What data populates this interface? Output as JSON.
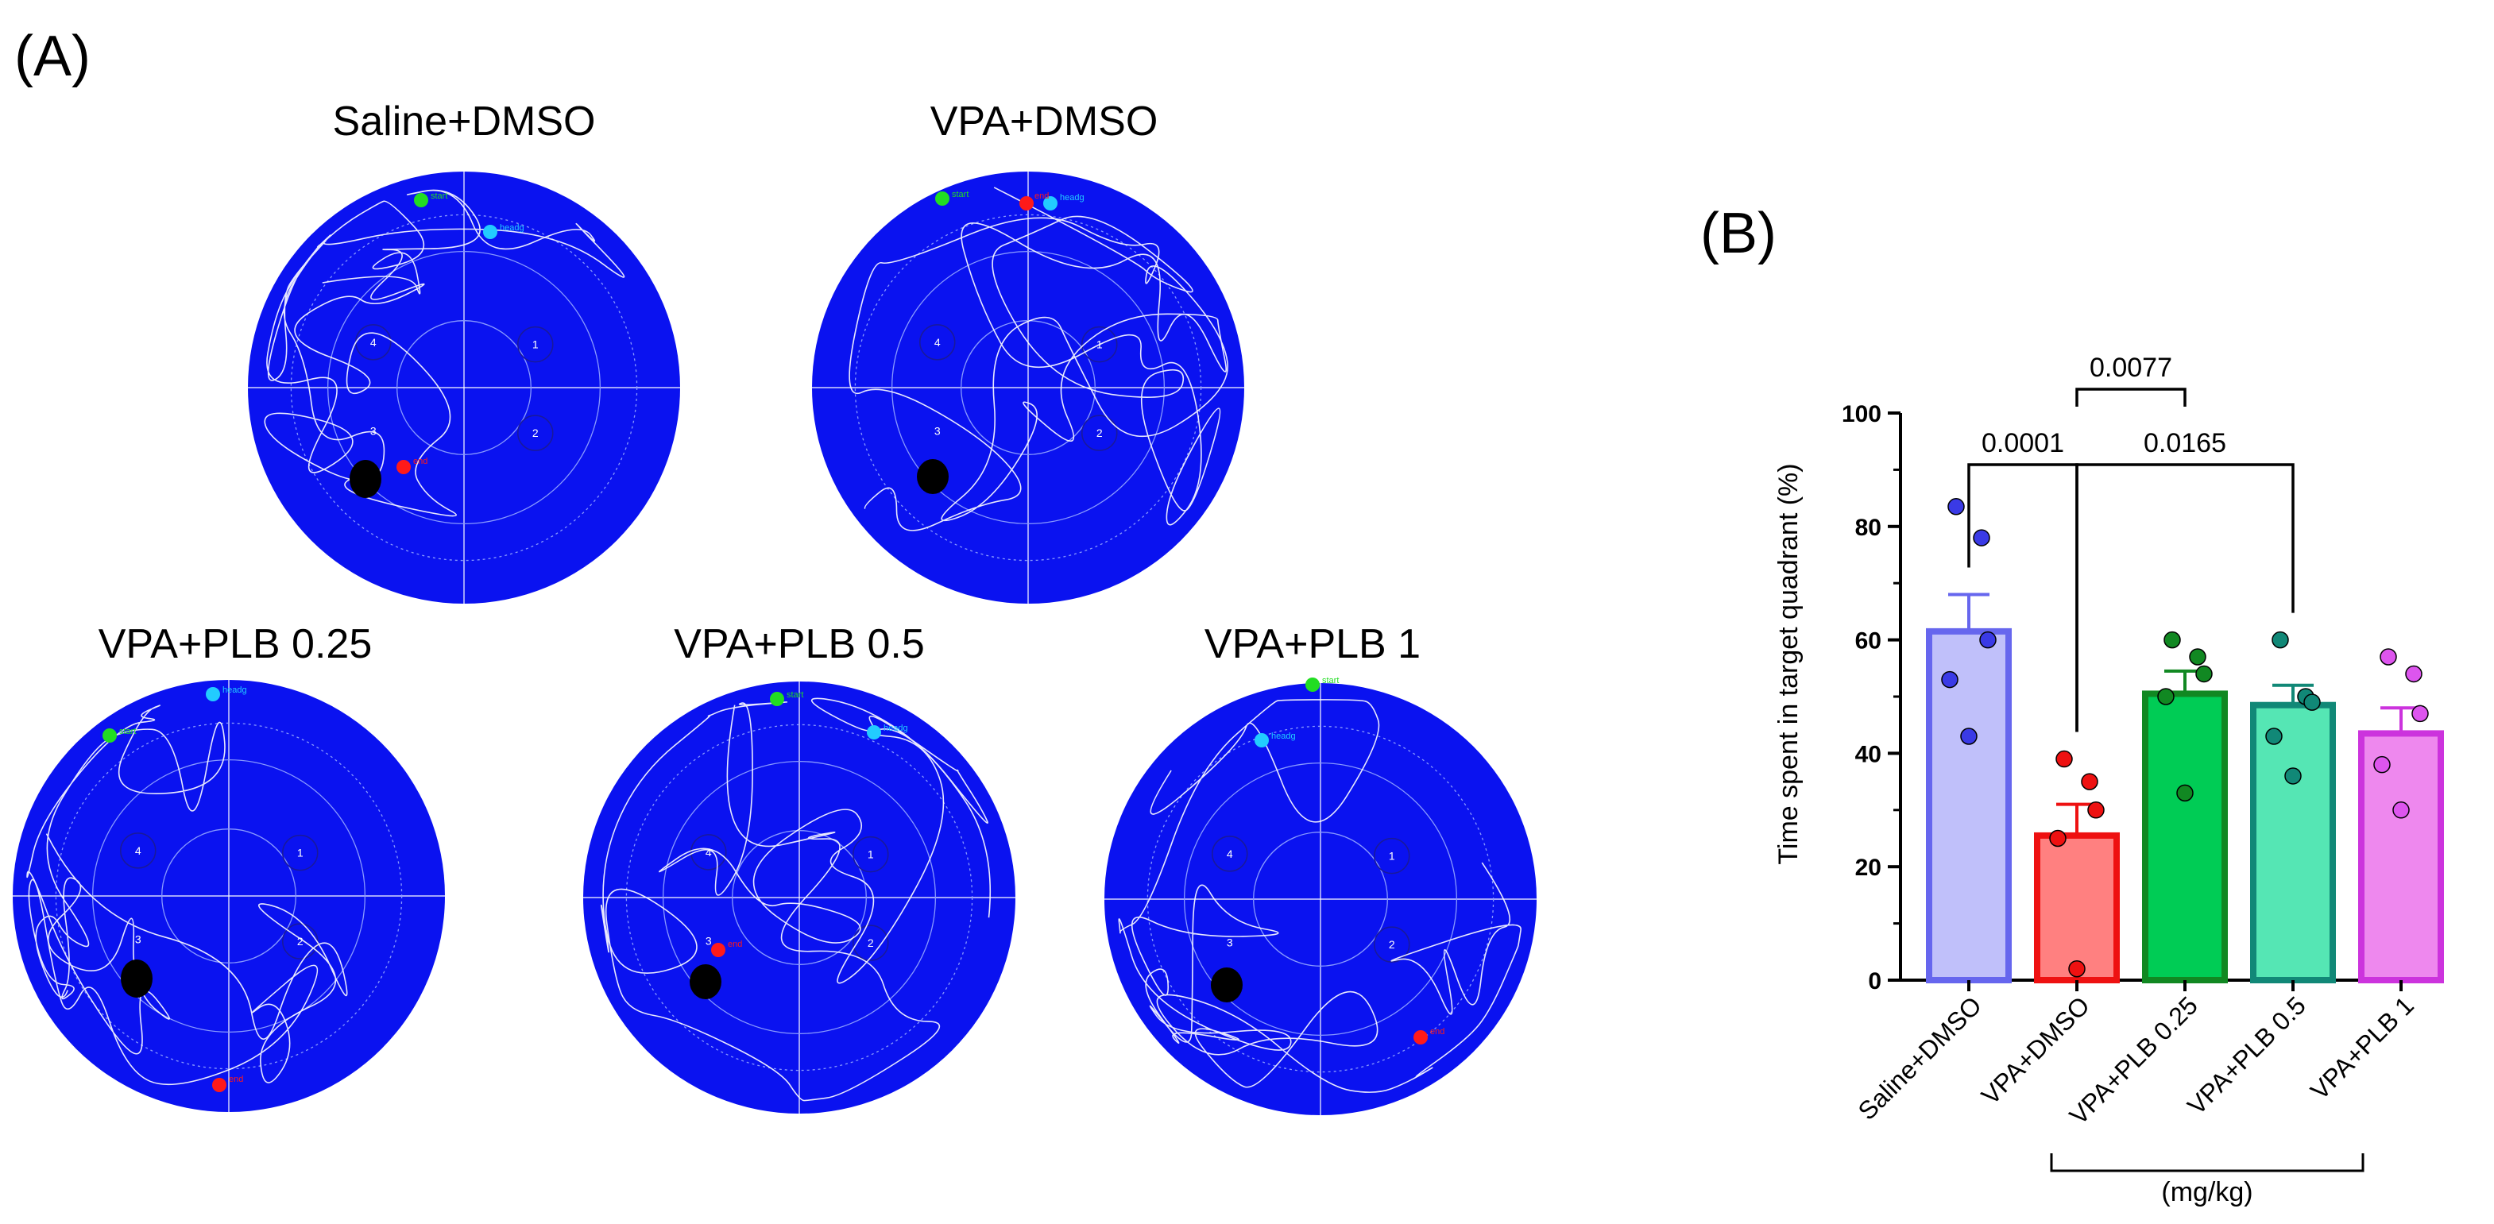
{
  "panel_a": {
    "label": "(A)",
    "mazes": [
      {
        "title": "Saline+DMSO",
        "start": "start",
        "heading": "headg",
        "end": "end"
      },
      {
        "title": "VPA+DMSO",
        "start": "start",
        "heading": "headg",
        "end": "end"
      },
      {
        "title": "VPA+PLB 0.25",
        "start": "start",
        "heading": "headg",
        "end": "end"
      },
      {
        "title": "VPA+PLB 0.5",
        "start": "start",
        "heading": "headg",
        "end": "end"
      },
      {
        "title": "VPA+PLB 1",
        "start": "start",
        "heading": "headg",
        "end": "end"
      }
    ],
    "quadrant_numbers": [
      "1",
      "2",
      "3",
      "4"
    ],
    "colors": {
      "pool": "#0a12f0",
      "start": "#22dd22",
      "heading": "#22ccff",
      "end": "#ff1a1a",
      "platform": "#000000",
      "path": "#ffffff"
    }
  },
  "panel_b": {
    "label": "(B)",
    "unit_label": "(mg/kg)",
    "p_values": [
      "0.0001",
      "0.0077",
      "0.0165"
    ]
  },
  "chart_data": {
    "type": "bar",
    "ylabel": "Time spent in target quadrant  (%)",
    "ylim": [
      0,
      100
    ],
    "yticks": [
      "0",
      "20",
      "40",
      "60",
      "80",
      "100"
    ],
    "categories": [
      "Saline+DMSO",
      "VPA+DMSO",
      "VPA+PLB 0.25",
      "VPA+PLB 0.5",
      "VPA+PLB 1"
    ],
    "values": [
      61.5,
      25.5,
      50.5,
      48.5,
      43.5
    ],
    "sem": [
      6.5,
      5.5,
      4.0,
      3.5,
      4.5
    ],
    "points": [
      [
        83.5,
        78,
        60,
        53,
        43
      ],
      [
        39,
        35,
        30,
        25,
        2
      ],
      [
        60,
        57,
        54,
        50,
        33
      ],
      [
        60,
        50,
        49,
        43,
        36
      ],
      [
        57,
        54,
        47,
        38,
        30
      ]
    ],
    "colors": {
      "fill": [
        "#c0c0fa",
        "#ff8080",
        "#00cc55",
        "#55e6b4",
        "#ee88ee"
      ],
      "edge": [
        "#6666ee",
        "#ee1111",
        "#118822",
        "#118877",
        "#cc33dd"
      ],
      "point": [
        "#3a3ae6",
        "#ee1111",
        "#118822",
        "#118877",
        "#dd55ee"
      ]
    },
    "comparisons": [
      {
        "from": 0,
        "to": 1,
        "p": "0.0001"
      },
      {
        "from": 1,
        "to": 2,
        "p": "0.0077"
      },
      {
        "from": 1,
        "to": 3,
        "p": "0.0165"
      }
    ]
  }
}
